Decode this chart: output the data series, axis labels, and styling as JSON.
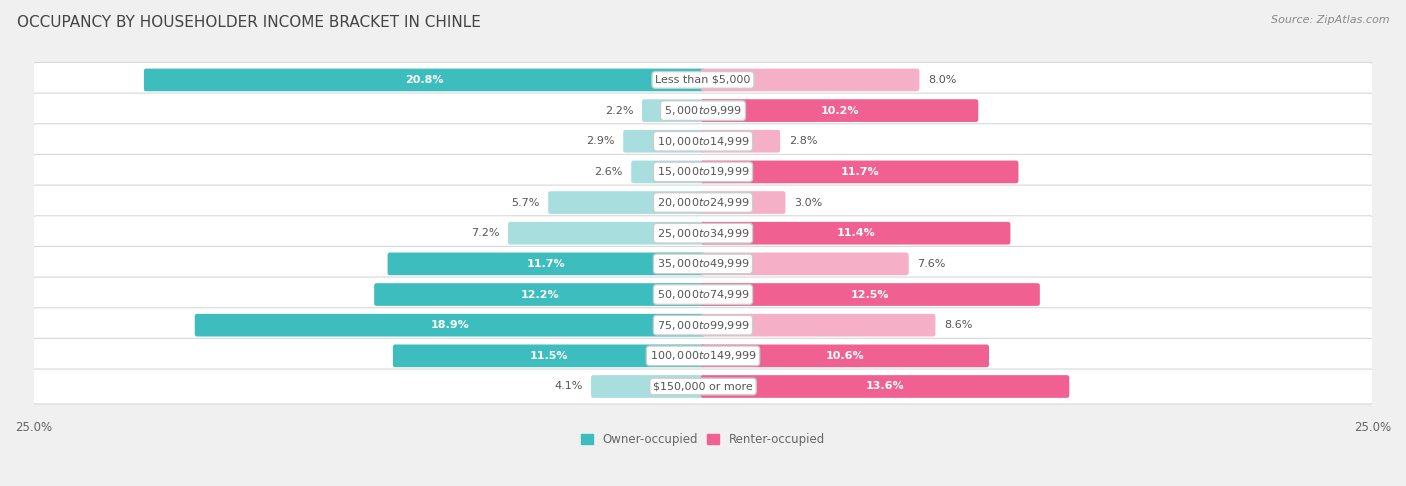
{
  "title": "OCCUPANCY BY HOUSEHOLDER INCOME BRACKET IN CHINLE",
  "source": "Source: ZipAtlas.com",
  "categories": [
    "Less than $5,000",
    "$5,000 to $9,999",
    "$10,000 to $14,999",
    "$15,000 to $19,999",
    "$20,000 to $24,999",
    "$25,000 to $34,999",
    "$35,000 to $49,999",
    "$50,000 to $74,999",
    "$75,000 to $99,999",
    "$100,000 to $149,999",
    "$150,000 or more"
  ],
  "owner_values": [
    20.8,
    2.2,
    2.9,
    2.6,
    5.7,
    7.2,
    11.7,
    12.2,
    18.9,
    11.5,
    4.1
  ],
  "renter_values": [
    8.0,
    10.2,
    2.8,
    11.7,
    3.0,
    11.4,
    7.6,
    12.5,
    8.6,
    10.6,
    13.6
  ],
  "owner_color_dark": "#3dbdbd",
  "owner_color_light": "#a8dede",
  "renter_color_dark": "#f06090",
  "renter_color_light": "#f5b0c8",
  "owner_label": "Owner-occupied",
  "renter_label": "Renter-occupied",
  "xlim": 25.0,
  "background_color": "#f0f0f0",
  "row_bg_color": "#ffffff",
  "row_border_color": "#d8d8d8",
  "title_color": "#444444",
  "source_color": "#888888",
  "value_color_dark": "#555555",
  "value_color_white": "#ffffff",
  "cat_label_color": "#555555",
  "title_fontsize": 11,
  "source_fontsize": 8,
  "label_fontsize": 8,
  "cat_fontsize": 8,
  "axis_label_fontsize": 8.5
}
